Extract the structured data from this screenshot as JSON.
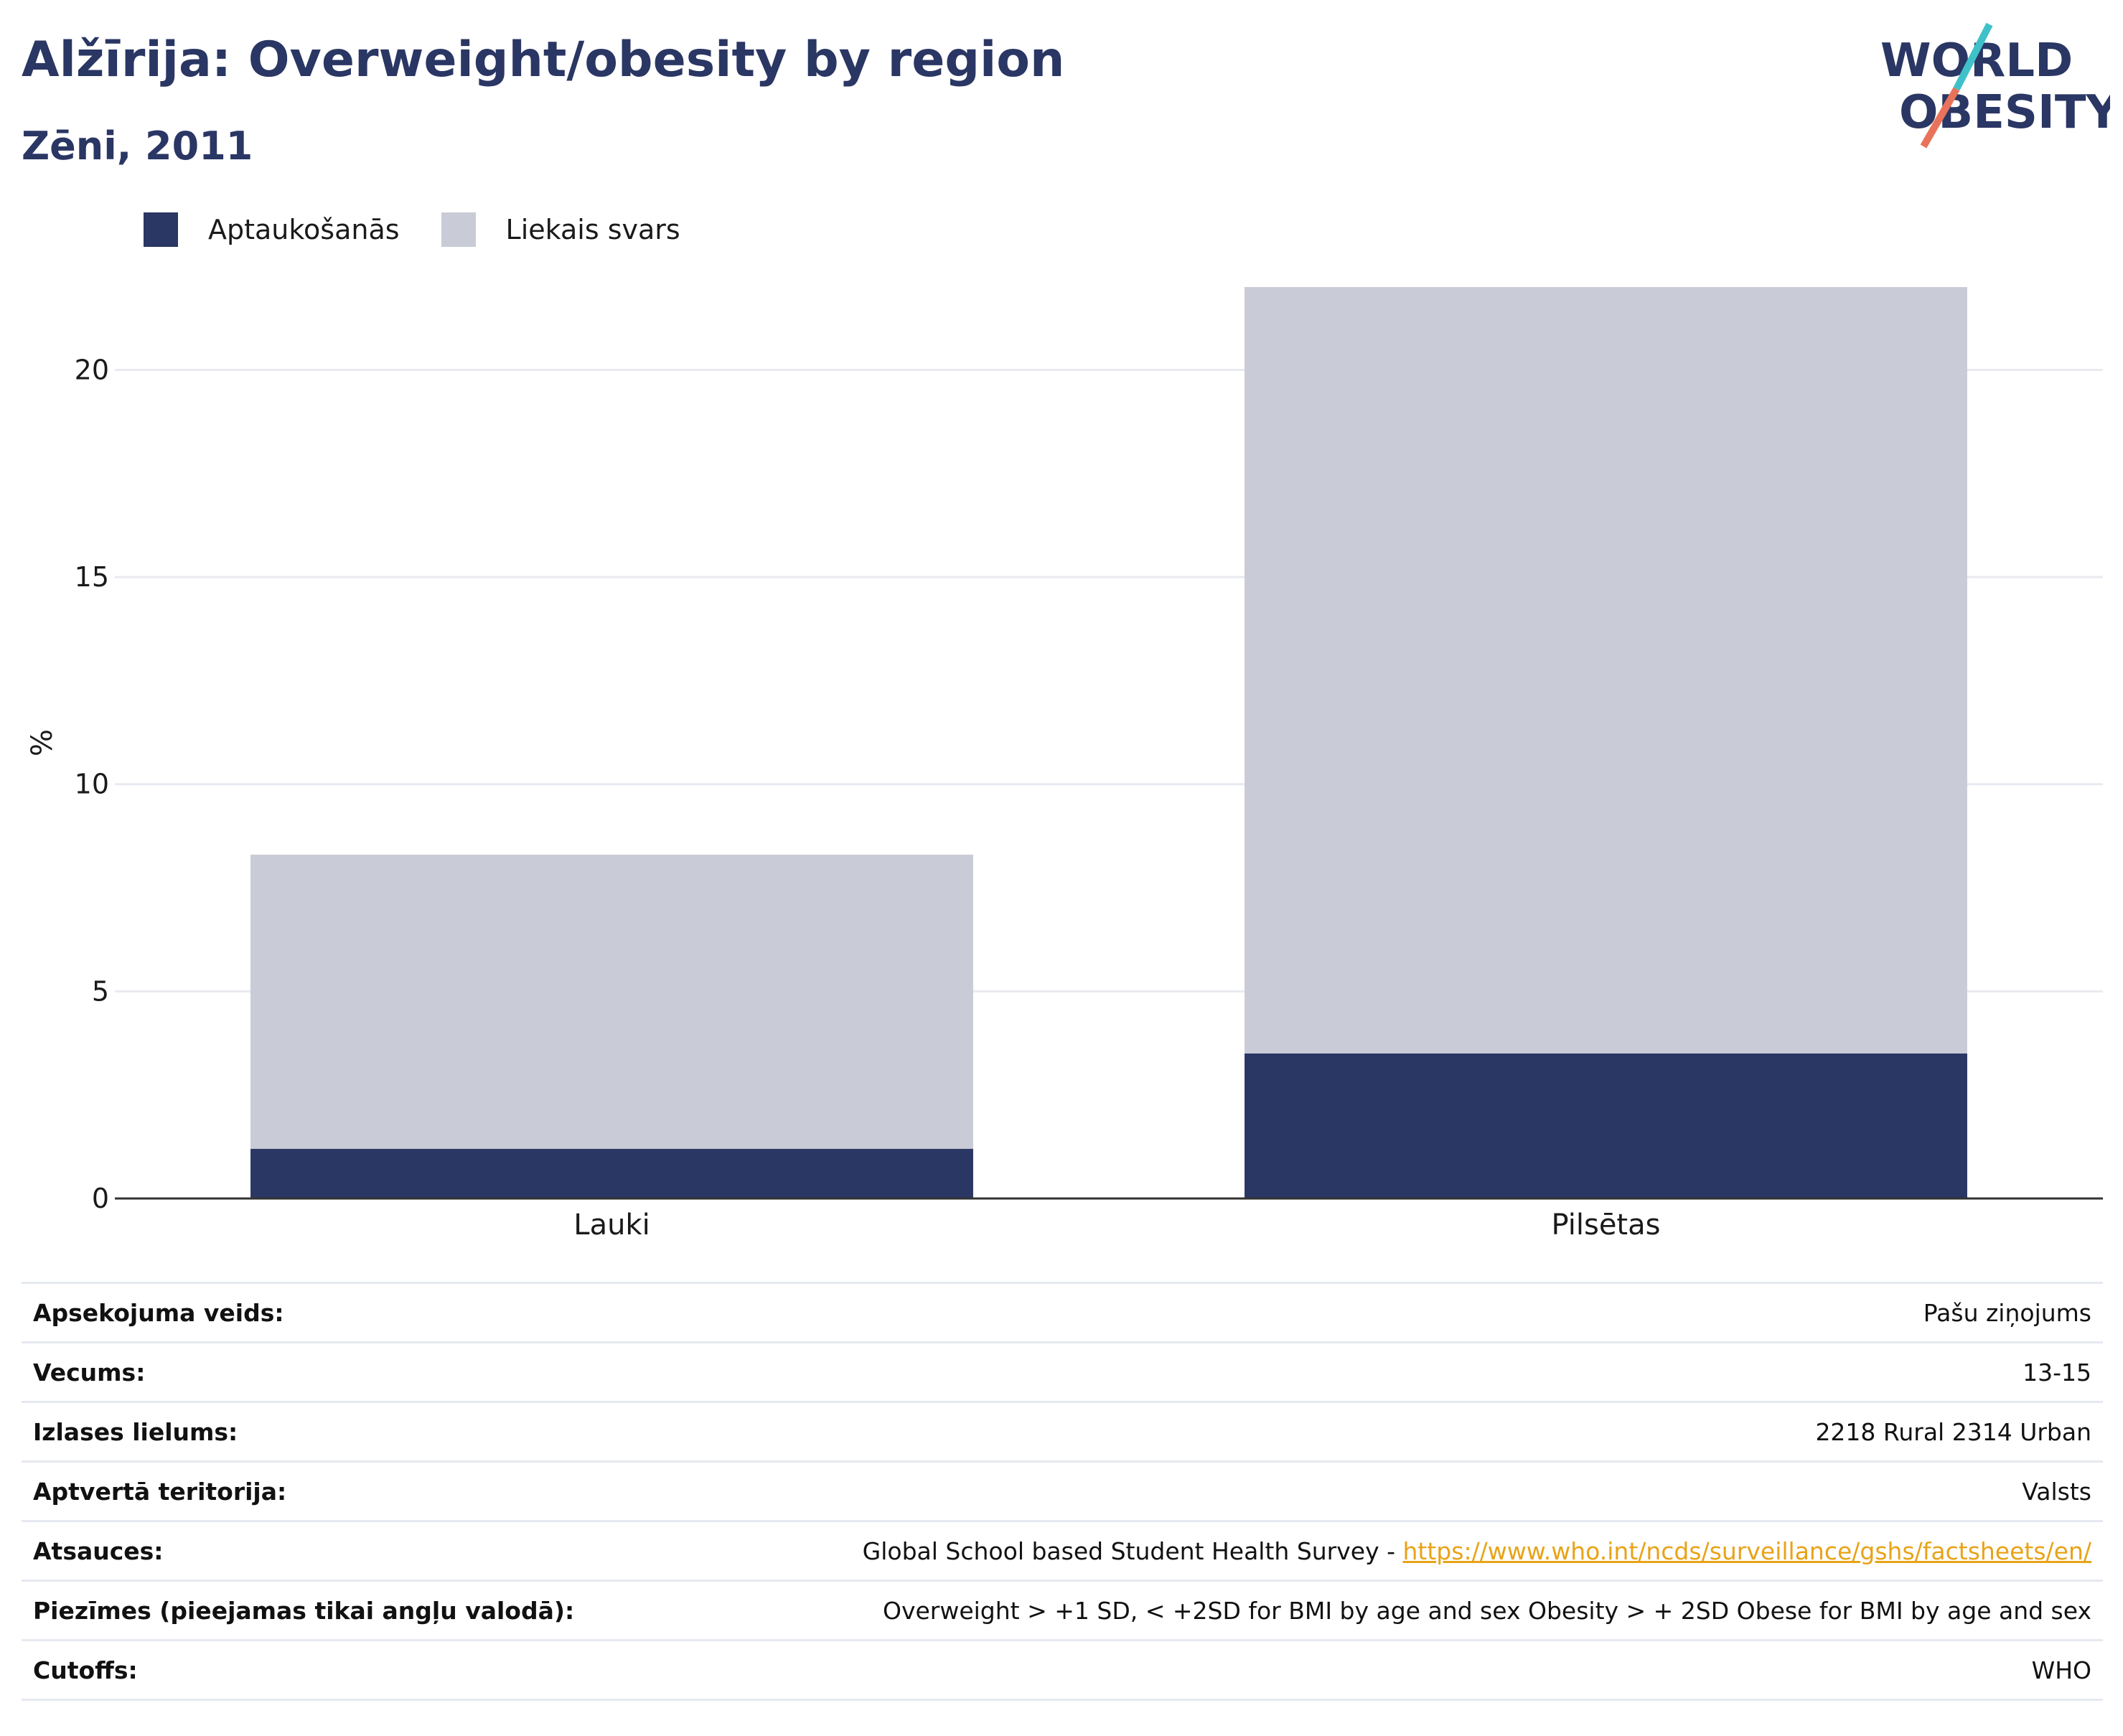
{
  "header": {
    "title": "Alžīrija: Overweight/obesity by region",
    "subtitle": "Zēni, 2011"
  },
  "logo": {
    "line1": "WORLD",
    "line2": "OBESITY",
    "slash_colors": [
      "#3fc1c9",
      "#e8735a"
    ]
  },
  "colors": {
    "obesity": "#2a3663",
    "overweight": "#c9cbd7",
    "grid": "#e8eaf0",
    "axis": "#333333",
    "link": "#e8a317"
  },
  "legend": [
    {
      "label": "Aptaukošanās",
      "color": "#2a3663"
    },
    {
      "label": "Liekais svars",
      "color": "#c9cbd7"
    }
  ],
  "chart_data": {
    "type": "bar",
    "stacked": true,
    "categories": [
      "Lauki",
      "Pilsētas"
    ],
    "series": [
      {
        "name": "Aptaukošanās",
        "values": [
          1.2,
          3.5
        ]
      },
      {
        "name": "Liekais svars",
        "values": [
          7.1,
          18.5
        ]
      }
    ],
    "totals": [
      8.3,
      22.0
    ],
    "ylabel": "%",
    "ylim": [
      0,
      22
    ],
    "yticks": [
      0,
      5,
      10,
      15,
      20
    ],
    "grid": true
  },
  "info": {
    "rows": [
      {
        "key": "Apsekojuma veids:",
        "value": "Pašu ziņojums"
      },
      {
        "key": "Vecums:",
        "value": "13-15"
      },
      {
        "key": "Izlases lielums:",
        "value": "2218 Rural 2314 Urban"
      },
      {
        "key": "Aptvertā teritorija:",
        "value": "Valsts"
      },
      {
        "key": "Atsauces:",
        "value": "Global School based Student Health Survey - ",
        "link": "https://www.who.int/ncds/surveillance/gshs/factsheets/en/"
      },
      {
        "key": "Piezīmes (pieejamas tikai angļu valodā):",
        "value": "Overweight > +1 SD, < +2SD for BMI by age and sex Obesity > + 2SD Obese for BMI by age and sex"
      },
      {
        "key": "Cutoffs:",
        "value": "WHO"
      }
    ]
  }
}
